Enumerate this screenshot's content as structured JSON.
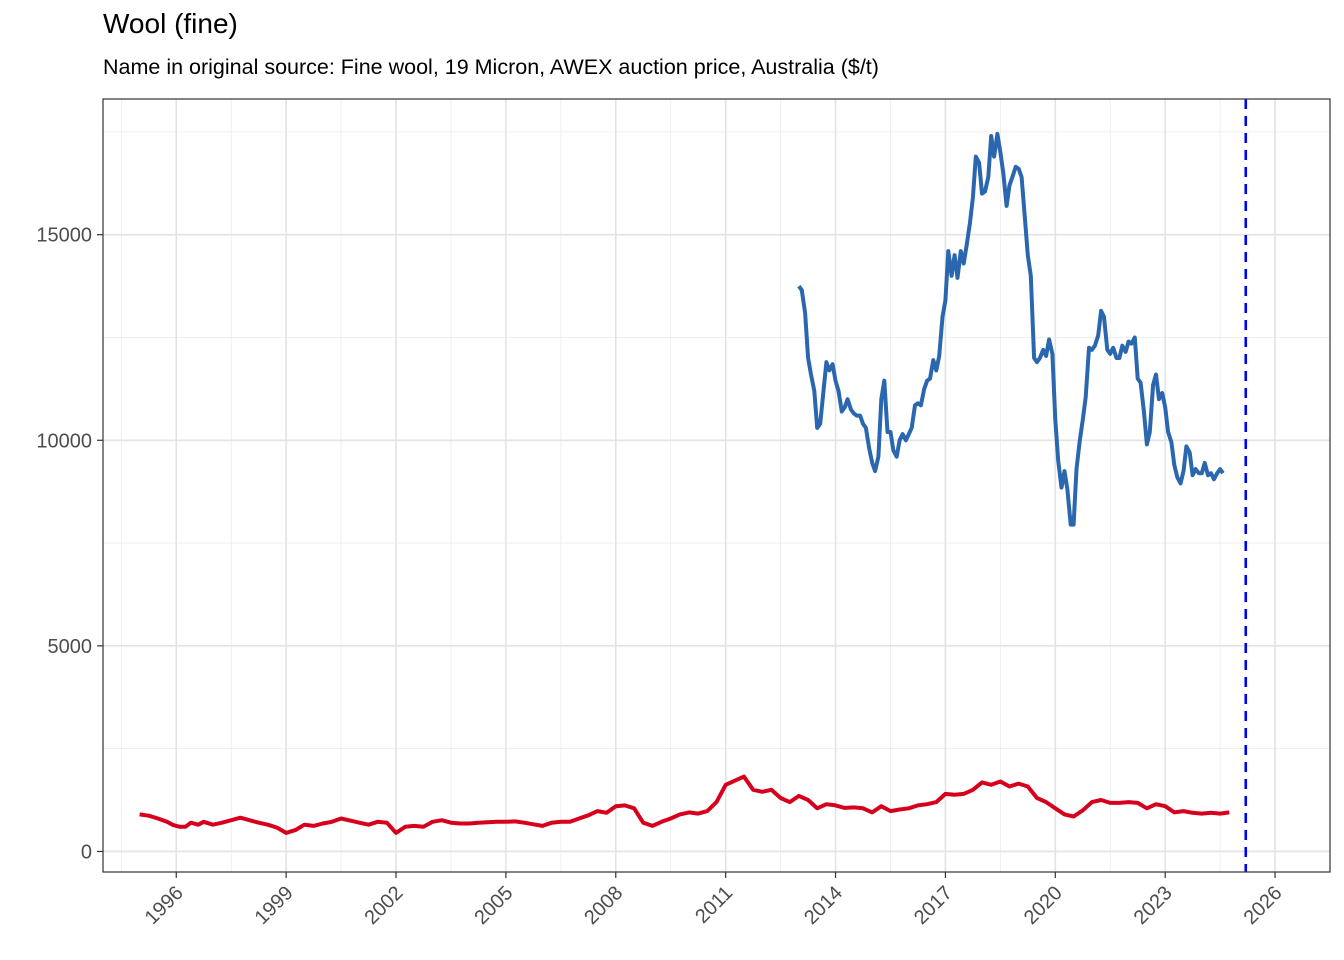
{
  "chart_data": {
    "type": "line",
    "title": "Wool (fine)",
    "subtitle": "Name in original source: Fine wool, 19 Micron, AWEX auction price, Australia ($/t)",
    "xlabel": "",
    "ylabel": "",
    "xlim": [
      1994.0,
      2027.5
    ],
    "ylim": [
      -500,
      18300
    ],
    "x_ticks": [
      1996,
      1999,
      2002,
      2005,
      2008,
      2011,
      2014,
      2017,
      2020,
      2023,
      2026
    ],
    "x_tick_labels": [
      "1996",
      "1999",
      "2002",
      "2005",
      "2008",
      "2011",
      "2014",
      "2017",
      "2020",
      "2023",
      "2026"
    ],
    "y_ticks": [
      0,
      5000,
      10000,
      15000
    ],
    "y_tick_labels": [
      "0",
      "5000",
      "10000",
      "15000"
    ],
    "grid": true,
    "vline": {
      "x": 2025.2,
      "color": "#0000ff",
      "style": "dashed"
    },
    "series": [
      {
        "color": "#2b67ae",
        "points": [
          [
            2013.0,
            13750
          ],
          [
            2013.08,
            13650
          ],
          [
            2013.17,
            13100
          ],
          [
            2013.25,
            12000
          ],
          [
            2013.33,
            11600
          ],
          [
            2013.42,
            11200
          ],
          [
            2013.5,
            10300
          ],
          [
            2013.58,
            10400
          ],
          [
            2013.67,
            11200
          ],
          [
            2013.75,
            11900
          ],
          [
            2013.83,
            11700
          ],
          [
            2013.92,
            11850
          ],
          [
            2014.0,
            11450
          ],
          [
            2014.08,
            11200
          ],
          [
            2014.17,
            10700
          ],
          [
            2014.25,
            10800
          ],
          [
            2014.33,
            11000
          ],
          [
            2014.42,
            10750
          ],
          [
            2014.5,
            10650
          ],
          [
            2014.58,
            10600
          ],
          [
            2014.67,
            10600
          ],
          [
            2014.75,
            10400
          ],
          [
            2014.83,
            10300
          ],
          [
            2014.92,
            9800
          ],
          [
            2015.0,
            9450
          ],
          [
            2015.08,
            9250
          ],
          [
            2015.17,
            9600
          ],
          [
            2015.25,
            11000
          ],
          [
            2015.33,
            11450
          ],
          [
            2015.42,
            10200
          ],
          [
            2015.5,
            10200
          ],
          [
            2015.58,
            9750
          ],
          [
            2015.67,
            9600
          ],
          [
            2015.75,
            10000
          ],
          [
            2015.83,
            10150
          ],
          [
            2015.92,
            10000
          ],
          [
            2016.0,
            10150
          ],
          [
            2016.08,
            10300
          ],
          [
            2016.17,
            10850
          ],
          [
            2016.25,
            10900
          ],
          [
            2016.33,
            10850
          ],
          [
            2016.42,
            11250
          ],
          [
            2016.5,
            11450
          ],
          [
            2016.58,
            11500
          ],
          [
            2016.67,
            11950
          ],
          [
            2016.75,
            11700
          ],
          [
            2016.83,
            12050
          ],
          [
            2016.92,
            13000
          ],
          [
            2017.0,
            13400
          ],
          [
            2017.08,
            14600
          ],
          [
            2017.17,
            14000
          ],
          [
            2017.25,
            14500
          ],
          [
            2017.33,
            13950
          ],
          [
            2017.42,
            14600
          ],
          [
            2017.5,
            14300
          ],
          [
            2017.58,
            14750
          ],
          [
            2017.67,
            15300
          ],
          [
            2017.75,
            15900
          ],
          [
            2017.83,
            16900
          ],
          [
            2017.92,
            16750
          ],
          [
            2018.0,
            16000
          ],
          [
            2018.08,
            16050
          ],
          [
            2018.17,
            16400
          ],
          [
            2018.25,
            17400
          ],
          [
            2018.33,
            16900
          ],
          [
            2018.42,
            17450
          ],
          [
            2018.5,
            17000
          ],
          [
            2018.58,
            16500
          ],
          [
            2018.67,
            15700
          ],
          [
            2018.75,
            16200
          ],
          [
            2018.83,
            16400
          ],
          [
            2018.92,
            16650
          ],
          [
            2019.0,
            16600
          ],
          [
            2019.08,
            16400
          ],
          [
            2019.17,
            15400
          ],
          [
            2019.25,
            14500
          ],
          [
            2019.33,
            14000
          ],
          [
            2019.42,
            12000
          ],
          [
            2019.5,
            11900
          ],
          [
            2019.58,
            12000
          ],
          [
            2019.67,
            12200
          ],
          [
            2019.75,
            12050
          ],
          [
            2019.83,
            12450
          ],
          [
            2019.92,
            12100
          ],
          [
            2020.0,
            10500
          ],
          [
            2020.08,
            9500
          ],
          [
            2020.17,
            8850
          ],
          [
            2020.25,
            9250
          ],
          [
            2020.33,
            8800
          ],
          [
            2020.42,
            7950
          ],
          [
            2020.5,
            7950
          ],
          [
            2020.58,
            9300
          ],
          [
            2020.67,
            10000
          ],
          [
            2020.75,
            10500
          ],
          [
            2020.83,
            11050
          ],
          [
            2020.92,
            12250
          ],
          [
            2021.0,
            12200
          ],
          [
            2021.08,
            12300
          ],
          [
            2021.17,
            12550
          ],
          [
            2021.25,
            13150
          ],
          [
            2021.33,
            13000
          ],
          [
            2021.42,
            12200
          ],
          [
            2021.5,
            12100
          ],
          [
            2021.58,
            12250
          ],
          [
            2021.67,
            12000
          ],
          [
            2021.75,
            12000
          ],
          [
            2021.83,
            12300
          ],
          [
            2021.92,
            12150
          ],
          [
            2022.0,
            12400
          ],
          [
            2022.08,
            12350
          ],
          [
            2022.17,
            12500
          ],
          [
            2022.25,
            11500
          ],
          [
            2022.33,
            11400
          ],
          [
            2022.42,
            10700
          ],
          [
            2022.5,
            9900
          ],
          [
            2022.58,
            10200
          ],
          [
            2022.67,
            11350
          ],
          [
            2022.75,
            11600
          ],
          [
            2022.83,
            11000
          ],
          [
            2022.92,
            11150
          ],
          [
            2023.0,
            10800
          ],
          [
            2023.08,
            10200
          ],
          [
            2023.17,
            9950
          ],
          [
            2023.25,
            9400
          ],
          [
            2023.33,
            9100
          ],
          [
            2023.42,
            8950
          ],
          [
            2023.5,
            9250
          ],
          [
            2023.58,
            9850
          ],
          [
            2023.67,
            9700
          ],
          [
            2023.75,
            9150
          ],
          [
            2023.83,
            9300
          ],
          [
            2023.92,
            9200
          ],
          [
            2024.0,
            9200
          ],
          [
            2024.08,
            9450
          ],
          [
            2024.17,
            9150
          ],
          [
            2024.25,
            9200
          ],
          [
            2024.33,
            9050
          ],
          [
            2024.42,
            9200
          ],
          [
            2024.5,
            9300
          ],
          [
            2024.58,
            9200
          ]
        ]
      },
      {
        "color": "#d6001c",
        "points": [
          [
            1995.0,
            900
          ],
          [
            1995.25,
            870
          ],
          [
            1995.5,
            800
          ],
          [
            1995.75,
            720
          ],
          [
            1995.92,
            640
          ],
          [
            1996.1,
            600
          ],
          [
            1996.25,
            600
          ],
          [
            1996.4,
            700
          ],
          [
            1996.6,
            650
          ],
          [
            1996.75,
            720
          ],
          [
            1997.0,
            650
          ],
          [
            1997.25,
            700
          ],
          [
            1997.5,
            760
          ],
          [
            1997.75,
            820
          ],
          [
            1998.0,
            760
          ],
          [
            1998.25,
            700
          ],
          [
            1998.5,
            650
          ],
          [
            1998.75,
            580
          ],
          [
            1999.0,
            450
          ],
          [
            1999.25,
            520
          ],
          [
            1999.5,
            650
          ],
          [
            1999.75,
            620
          ],
          [
            2000.0,
            680
          ],
          [
            2000.25,
            720
          ],
          [
            2000.5,
            800
          ],
          [
            2000.75,
            750
          ],
          [
            2001.0,
            700
          ],
          [
            2001.25,
            650
          ],
          [
            2001.5,
            720
          ],
          [
            2001.75,
            700
          ],
          [
            2002.0,
            450
          ],
          [
            2002.25,
            600
          ],
          [
            2002.5,
            620
          ],
          [
            2002.75,
            600
          ],
          [
            2003.0,
            720
          ],
          [
            2003.25,
            760
          ],
          [
            2003.5,
            700
          ],
          [
            2003.75,
            680
          ],
          [
            2004.0,
            680
          ],
          [
            2004.25,
            700
          ],
          [
            2004.5,
            710
          ],
          [
            2004.75,
            720
          ],
          [
            2005.0,
            720
          ],
          [
            2005.25,
            730
          ],
          [
            2005.5,
            700
          ],
          [
            2005.75,
            660
          ],
          [
            2006.0,
            620
          ],
          [
            2006.25,
            700
          ],
          [
            2006.5,
            720
          ],
          [
            2006.75,
            720
          ],
          [
            2007.0,
            800
          ],
          [
            2007.25,
            880
          ],
          [
            2007.5,
            980
          ],
          [
            2007.75,
            940
          ],
          [
            2008.0,
            1100
          ],
          [
            2008.25,
            1120
          ],
          [
            2008.5,
            1050
          ],
          [
            2008.75,
            700
          ],
          [
            2009.0,
            620
          ],
          [
            2009.25,
            720
          ],
          [
            2009.5,
            800
          ],
          [
            2009.75,
            900
          ],
          [
            2010.0,
            950
          ],
          [
            2010.25,
            920
          ],
          [
            2010.5,
            980
          ],
          [
            2010.75,
            1200
          ],
          [
            2011.0,
            1620
          ],
          [
            2011.25,
            1720
          ],
          [
            2011.5,
            1820
          ],
          [
            2011.75,
            1500
          ],
          [
            2012.0,
            1450
          ],
          [
            2012.25,
            1500
          ],
          [
            2012.5,
            1300
          ],
          [
            2012.75,
            1200
          ],
          [
            2013.0,
            1350
          ],
          [
            2013.25,
            1250
          ],
          [
            2013.5,
            1050
          ],
          [
            2013.75,
            1150
          ],
          [
            2014.0,
            1120
          ],
          [
            2014.25,
            1060
          ],
          [
            2014.5,
            1070
          ],
          [
            2014.75,
            1050
          ],
          [
            2015.0,
            950
          ],
          [
            2015.25,
            1100
          ],
          [
            2015.5,
            980
          ],
          [
            2015.75,
            1020
          ],
          [
            2016.0,
            1050
          ],
          [
            2016.25,
            1120
          ],
          [
            2016.5,
            1150
          ],
          [
            2016.75,
            1200
          ],
          [
            2017.0,
            1400
          ],
          [
            2017.25,
            1380
          ],
          [
            2017.5,
            1400
          ],
          [
            2017.75,
            1500
          ],
          [
            2018.0,
            1680
          ],
          [
            2018.25,
            1620
          ],
          [
            2018.5,
            1700
          ],
          [
            2018.75,
            1580
          ],
          [
            2019.0,
            1650
          ],
          [
            2019.25,
            1580
          ],
          [
            2019.5,
            1300
          ],
          [
            2019.75,
            1200
          ],
          [
            2020.0,
            1050
          ],
          [
            2020.25,
            900
          ],
          [
            2020.5,
            850
          ],
          [
            2020.75,
            1000
          ],
          [
            2021.0,
            1200
          ],
          [
            2021.25,
            1250
          ],
          [
            2021.5,
            1180
          ],
          [
            2021.75,
            1180
          ],
          [
            2022.0,
            1200
          ],
          [
            2022.25,
            1180
          ],
          [
            2022.5,
            1050
          ],
          [
            2022.75,
            1150
          ],
          [
            2023.0,
            1100
          ],
          [
            2023.25,
            950
          ],
          [
            2023.5,
            980
          ],
          [
            2023.75,
            940
          ],
          [
            2024.0,
            920
          ],
          [
            2024.25,
            940
          ],
          [
            2024.5,
            920
          ],
          [
            2024.75,
            950
          ]
        ]
      }
    ]
  }
}
